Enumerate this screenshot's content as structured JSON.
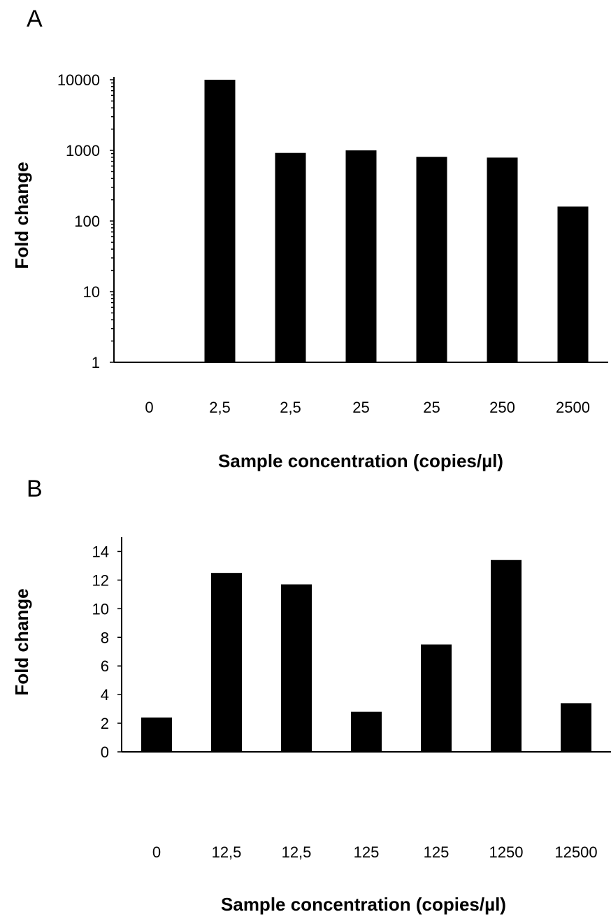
{
  "chart_data": [
    {
      "panel": "A",
      "type": "bar",
      "categories": [
        "0",
        "2,5",
        "2,5",
        "25",
        "25",
        "250",
        "2500"
      ],
      "values": [
        1,
        10000,
        920,
        1000,
        810,
        790,
        160
      ],
      "yscale": "log",
      "ylim": [
        1,
        10000
      ],
      "yticks": [
        1,
        10,
        100,
        1000,
        10000
      ],
      "ytick_labels": [
        "1",
        "10",
        "100",
        "1000",
        "10000"
      ],
      "xlabel": "Sample concentration (copies/µl)",
      "ylabel": "Fold change",
      "grid": false,
      "color": "#000000"
    },
    {
      "panel": "B",
      "type": "bar",
      "categories": [
        "0",
        "12,5",
        "12,5",
        "125",
        "125",
        "1250",
        "12500"
      ],
      "values": [
        2.4,
        12.5,
        11.7,
        2.8,
        7.5,
        13.4,
        3.4
      ],
      "yscale": "linear",
      "ylim": [
        0,
        15
      ],
      "yticks": [
        0,
        2,
        4,
        6,
        8,
        10,
        12,
        14
      ],
      "ytick_labels": [
        "0",
        "2",
        "4",
        "6",
        "8",
        "10",
        "12",
        "14"
      ],
      "xlabel": "Sample concentration (copies/µl)",
      "ylabel": "Fold change",
      "grid": false,
      "color": "#000000"
    }
  ]
}
